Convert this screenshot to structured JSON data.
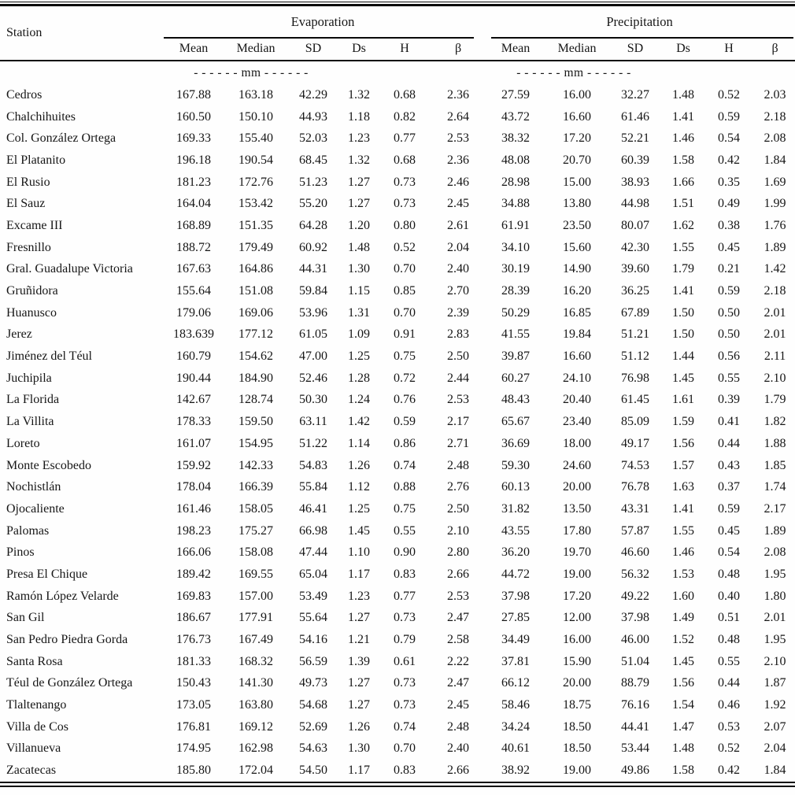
{
  "table": {
    "station_header": "Station",
    "group_headers": {
      "evaporation": "Evaporation",
      "precipitation": "Precipitation"
    },
    "sub_headers": [
      "Mean",
      "Median",
      "SD",
      "Ds",
      "H",
      "β"
    ],
    "units_label": "- - - - - -  mm  - - - - - -",
    "rows": [
      {
        "station": "Cedros",
        "values": [
          "167.88",
          "163.18",
          "42.29",
          "1.32",
          "0.68",
          "2.36",
          "27.59",
          "16.00",
          "32.27",
          "1.48",
          "0.52",
          "2.03"
        ]
      },
      {
        "station": "Chalchihuites",
        "values": [
          "160.50",
          "150.10",
          "44.93",
          "1.18",
          "0.82",
          "2.64",
          "43.72",
          "16.60",
          "61.46",
          "1.41",
          "0.59",
          "2.18"
        ]
      },
      {
        "station": "Col. González Ortega",
        "values": [
          "169.33",
          "155.40",
          "52.03",
          "1.23",
          "0.77",
          "2.53",
          "38.32",
          "17.20",
          "52.21",
          "1.46",
          "0.54",
          "2.08"
        ]
      },
      {
        "station": "El Platanito",
        "values": [
          "196.18",
          "190.54",
          "68.45",
          "1.32",
          "0.68",
          "2.36",
          "48.08",
          "20.70",
          "60.39",
          "1.58",
          "0.42",
          "1.84"
        ]
      },
      {
        "station": "El Rusio",
        "values": [
          "181.23",
          "172.76",
          "51.23",
          "1.27",
          "0.73",
          "2.46",
          "28.98",
          "15.00",
          "38.93",
          "1.66",
          "0.35",
          "1.69"
        ]
      },
      {
        "station": "El Sauz",
        "values": [
          "164.04",
          "153.42",
          "55.20",
          "1.27",
          "0.73",
          "2.45",
          "34.88",
          "13.80",
          "44.98",
          "1.51",
          "0.49",
          "1.99"
        ]
      },
      {
        "station": "Excame III",
        "values": [
          "168.89",
          "151.35",
          "64.28",
          "1.20",
          "0.80",
          "2.61",
          "61.91",
          "23.50",
          "80.07",
          "1.62",
          "0.38",
          "1.76"
        ]
      },
      {
        "station": "Fresnillo",
        "values": [
          "188.72",
          "179.49",
          "60.92",
          "1.48",
          "0.52",
          "2.04",
          "34.10",
          "15.60",
          "42.30",
          "1.55",
          "0.45",
          "1.89"
        ]
      },
      {
        "station": "Gral. Guadalupe Victoria",
        "values": [
          "167.63",
          "164.86",
          "44.31",
          "1.30",
          "0.70",
          "2.40",
          "30.19",
          "14.90",
          "39.60",
          "1.79",
          "0.21",
          "1.42"
        ]
      },
      {
        "station": "Gruñidora",
        "values": [
          "155.64",
          "151.08",
          "59.84",
          "1.15",
          "0.85",
          "2.70",
          "28.39",
          "16.20",
          "36.25",
          "1.41",
          "0.59",
          "2.18"
        ]
      },
      {
        "station": "Huanusco",
        "values": [
          "179.06",
          "169.06",
          "53.96",
          "1.31",
          "0.70",
          "2.39",
          "50.29",
          "16.85",
          "67.89",
          "1.50",
          "0.50",
          "2.01"
        ]
      },
      {
        "station": "Jerez",
        "values": [
          "183.639",
          "177.12",
          "61.05",
          "1.09",
          "0.91",
          "2.83",
          "41.55",
          "19.84",
          "51.21",
          "1.50",
          "0.50",
          "2.01"
        ]
      },
      {
        "station": "Jiménez del Téul",
        "values": [
          "160.79",
          "154.62",
          "47.00",
          "1.25",
          "0.75",
          "2.50",
          "39.87",
          "16.60",
          "51.12",
          "1.44",
          "0.56",
          "2.11"
        ]
      },
      {
        "station": "Juchipila",
        "values": [
          "190.44",
          "184.90",
          "52.46",
          "1.28",
          "0.72",
          "2.44",
          "60.27",
          "24.10",
          "76.98",
          "1.45",
          "0.55",
          "2.10"
        ]
      },
      {
        "station": "La Florida",
        "values": [
          "142.67",
          "128.74",
          "50.30",
          "1.24",
          "0.76",
          "2.53",
          "48.43",
          "20.40",
          "61.45",
          "1.61",
          "0.39",
          "1.79"
        ]
      },
      {
        "station": "La Villita",
        "values": [
          "178.33",
          "159.50",
          "63.11",
          "1.42",
          "0.59",
          "2.17",
          "65.67",
          "23.40",
          "85.09",
          "1.59",
          "0.41",
          "1.82"
        ]
      },
      {
        "station": "Loreto",
        "values": [
          "161.07",
          "154.95",
          "51.22",
          "1.14",
          "0.86",
          "2.71",
          "36.69",
          "18.00",
          "49.17",
          "1.56",
          "0.44",
          "1.88"
        ]
      },
      {
        "station": "Monte Escobedo",
        "values": [
          "159.92",
          "142.33",
          "54.83",
          "1.26",
          "0.74",
          "2.48",
          "59.30",
          "24.60",
          "74.53",
          "1.57",
          "0.43",
          "1.85"
        ]
      },
      {
        "station": "Nochistlán",
        "values": [
          "178.04",
          "166.39",
          "55.84",
          "1.12",
          "0.88",
          "2.76",
          "60.13",
          "20.00",
          "76.78",
          "1.63",
          "0.37",
          "1.74"
        ]
      },
      {
        "station": "Ojocaliente",
        "values": [
          "161.46",
          "158.05",
          "46.41",
          "1.25",
          "0.75",
          "2.50",
          "31.82",
          "13.50",
          "43.31",
          "1.41",
          "0.59",
          "2.17"
        ]
      },
      {
        "station": "Palomas",
        "values": [
          "198.23",
          "175.27",
          "66.98",
          "1.45",
          "0.55",
          "2.10",
          "43.55",
          "17.80",
          "57.87",
          "1.55",
          "0.45",
          "1.89"
        ]
      },
      {
        "station": "Pinos",
        "values": [
          "166.06",
          "158.08",
          "47.44",
          "1.10",
          "0.90",
          "2.80",
          "36.20",
          "19.70",
          "46.60",
          "1.46",
          "0.54",
          "2.08"
        ]
      },
      {
        "station": "Presa El Chique",
        "values": [
          "189.42",
          "169.55",
          "65.04",
          "1.17",
          "0.83",
          "2.66",
          "44.72",
          "19.00",
          "56.32",
          "1.53",
          "0.48",
          "1.95"
        ]
      },
      {
        "station": "Ramón López Velarde",
        "values": [
          "169.83",
          "157.00",
          "53.49",
          "1.23",
          "0.77",
          "2.53",
          "37.98",
          "17.20",
          "49.22",
          "1.60",
          "0.40",
          "1.80"
        ]
      },
      {
        "station": "San Gil",
        "values": [
          "186.67",
          "177.91",
          "55.64",
          "1.27",
          "0.73",
          "2.47",
          "27.85",
          "12.00",
          "37.98",
          "1.49",
          "0.51",
          "2.01"
        ]
      },
      {
        "station": "San Pedro Piedra Gorda",
        "values": [
          "176.73",
          "167.49",
          "54.16",
          "1.21",
          "0.79",
          "2.58",
          "34.49",
          "16.00",
          "46.00",
          "1.52",
          "0.48",
          "1.95"
        ]
      },
      {
        "station": "Santa Rosa",
        "values": [
          "181.33",
          "168.32",
          "56.59",
          "1.39",
          "0.61",
          "2.22",
          "37.81",
          "15.90",
          "51.04",
          "1.45",
          "0.55",
          "2.10"
        ]
      },
      {
        "station": "Téul de González Ortega",
        "values": [
          "150.43",
          "141.30",
          "49.73",
          "1.27",
          "0.73",
          "2.47",
          "66.12",
          "20.00",
          "88.79",
          "1.56",
          "0.44",
          "1.87"
        ]
      },
      {
        "station": "Tlaltenango",
        "values": [
          "173.05",
          "163.80",
          "54.68",
          "1.27",
          "0.73",
          "2.45",
          "58.46",
          "18.75",
          "76.16",
          "1.54",
          "0.46",
          "1.92"
        ]
      },
      {
        "station": "Villa de Cos",
        "values": [
          "176.81",
          "169.12",
          "52.69",
          "1.26",
          "0.74",
          "2.48",
          "34.24",
          "18.50",
          "44.41",
          "1.47",
          "0.53",
          "2.07"
        ]
      },
      {
        "station": "Villanueva",
        "values": [
          "174.95",
          "162.98",
          "54.63",
          "1.30",
          "0.70",
          "2.40",
          "40.61",
          "18.50",
          "53.44",
          "1.48",
          "0.52",
          "2.04"
        ]
      },
      {
        "station": "Zacatecas",
        "values": [
          "185.80",
          "172.04",
          "54.50",
          "1.17",
          "0.83",
          "2.66",
          "38.92",
          "19.00",
          "49.86",
          "1.58",
          "0.42",
          "1.84"
        ]
      }
    ]
  }
}
